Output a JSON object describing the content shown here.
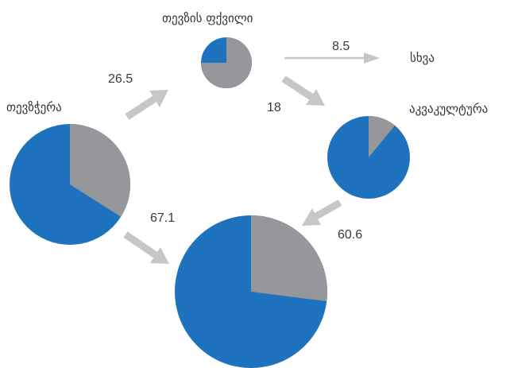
{
  "colors": {
    "blue": "#1f72bd",
    "gray": "#95979b",
    "arrow": "#c6c6c6"
  },
  "nodes": {
    "fishing": {
      "label": "თევზჭერა",
      "gray_fraction": 0.34
    },
    "fishmeal": {
      "label": "თევზის ფქვილი",
      "gray_fraction": 0.75
    },
    "aquaculture": {
      "label": "აკვაკულტურა",
      "gray_fraction": 0.11
    },
    "consumption": {
      "gray_fraction": 0.27
    },
    "other": {
      "label": "სხვა"
    }
  },
  "flows": {
    "fishing_to_fishmeal": "26.5",
    "fishmeal_to_other": "8.5",
    "fishmeal_to_aquaculture": "18",
    "fishing_to_consumption": "67.1",
    "aquaculture_to_consumption": "60.6"
  }
}
